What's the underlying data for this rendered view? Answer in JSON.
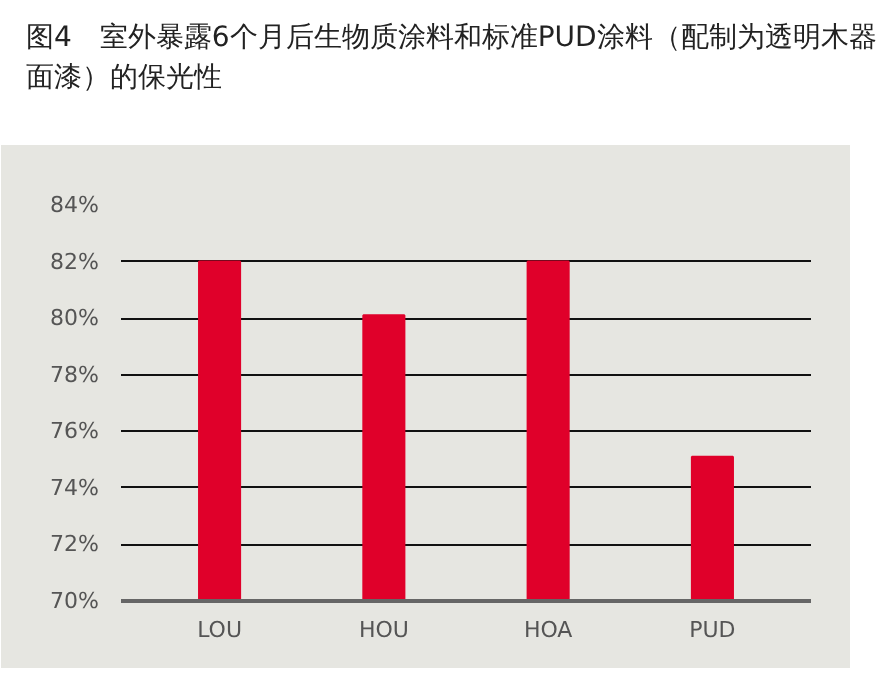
{
  "chart_data": {
    "type": "bar",
    "title": "图4　室外暴露6个月后生物质涂料和标准PUD涂料（配制为透明木器面漆）的保光性",
    "categories": [
      "LOU",
      "HOU",
      "HOA",
      "PUD"
    ],
    "values": [
      82,
      80.1,
      82,
      75.1
    ],
    "color": "#e0002a",
    "ylim": [
      70,
      84
    ],
    "yticks": [
      {
        "value": 70,
        "label": "70%"
      },
      {
        "value": 72,
        "label": "72%"
      },
      {
        "value": 74,
        "label": "74%"
      },
      {
        "value": 76,
        "label": "76%"
      },
      {
        "value": 78,
        "label": "78%"
      },
      {
        "value": 80,
        "label": "80%"
      },
      {
        "value": 82,
        "label": "82%"
      },
      {
        "value": 84,
        "label": "84%"
      }
    ],
    "grid": "y"
  }
}
